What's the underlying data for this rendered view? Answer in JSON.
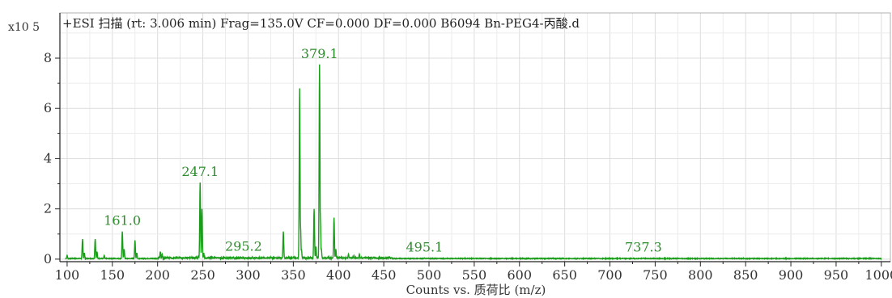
{
  "chart_data": {
    "type": "line",
    "title": "+ESI 扫描 (rt: 3.006 min) Frag=135.0V CF=0.000 DF=0.000 B6094 Bn-PEG4-丙酸.d",
    "xlabel": "Counts vs. 质荷比 (m/z)",
    "ylabel": "",
    "y_scale_label": "x10 5",
    "x_ticks": [
      100,
      150,
      200,
      250,
      300,
      350,
      400,
      450,
      500,
      550,
      600,
      650,
      700,
      750,
      800,
      850,
      900,
      950,
      1000
    ],
    "y_ticks": [
      0,
      2,
      4,
      6,
      8
    ],
    "xlim": [
      92,
      1010
    ],
    "ylim": [
      -0.1,
      9.8
    ],
    "grid": true,
    "line_color": "#1a9e1a",
    "label_color": "#2e8b2e",
    "peaks": [
      {
        "x": 100,
        "y": 0.15
      },
      {
        "x": 117,
        "y": 0.8
      },
      {
        "x": 119,
        "y": 0.25
      },
      {
        "x": 131,
        "y": 0.8
      },
      {
        "x": 133,
        "y": 0.3
      },
      {
        "x": 141,
        "y": 0.15
      },
      {
        "x": 161,
        "y": 1.1
      },
      {
        "x": 163,
        "y": 0.4
      },
      {
        "x": 175,
        "y": 0.75
      },
      {
        "x": 177,
        "y": 0.25
      },
      {
        "x": 203,
        "y": 0.3
      },
      {
        "x": 205,
        "y": 0.2
      },
      {
        "x": 225,
        "y": 0.08
      },
      {
        "x": 245,
        "y": 0.12
      },
      {
        "x": 247,
        "y": 3.05
      },
      {
        "x": 249,
        "y": 2.0
      },
      {
        "x": 251,
        "y": 0.25
      },
      {
        "x": 263,
        "y": 0.1
      },
      {
        "x": 295,
        "y": 0.08
      },
      {
        "x": 339,
        "y": 1.1
      },
      {
        "x": 357,
        "y": 6.8
      },
      {
        "x": 358,
        "y": 1.3
      },
      {
        "x": 359,
        "y": 0.4
      },
      {
        "x": 373,
        "y": 2.0
      },
      {
        "x": 375,
        "y": 0.5
      },
      {
        "x": 379,
        "y": 7.75
      },
      {
        "x": 380,
        "y": 1.6
      },
      {
        "x": 381,
        "y": 0.4
      },
      {
        "x": 395,
        "y": 1.65
      },
      {
        "x": 397,
        "y": 0.4
      },
      {
        "x": 411,
        "y": 0.2
      },
      {
        "x": 417,
        "y": 0.15
      },
      {
        "x": 423,
        "y": 0.2
      },
      {
        "x": 439,
        "y": 0.08
      },
      {
        "x": 495,
        "y": 0.05
      },
      {
        "x": 737,
        "y": 0.05
      }
    ],
    "annotations": [
      {
        "text": "161.0",
        "x": 161,
        "y": 1.1
      },
      {
        "text": "247.1",
        "x": 247,
        "y": 3.05
      },
      {
        "text": "295.2",
        "x": 295,
        "y": 0.08
      },
      {
        "text": "379.1",
        "x": 379,
        "y": 7.75
      },
      {
        "text": "495.1",
        "x": 495,
        "y": 0.05
      },
      {
        "text": "737.3",
        "x": 737,
        "y": 0.05
      }
    ]
  }
}
